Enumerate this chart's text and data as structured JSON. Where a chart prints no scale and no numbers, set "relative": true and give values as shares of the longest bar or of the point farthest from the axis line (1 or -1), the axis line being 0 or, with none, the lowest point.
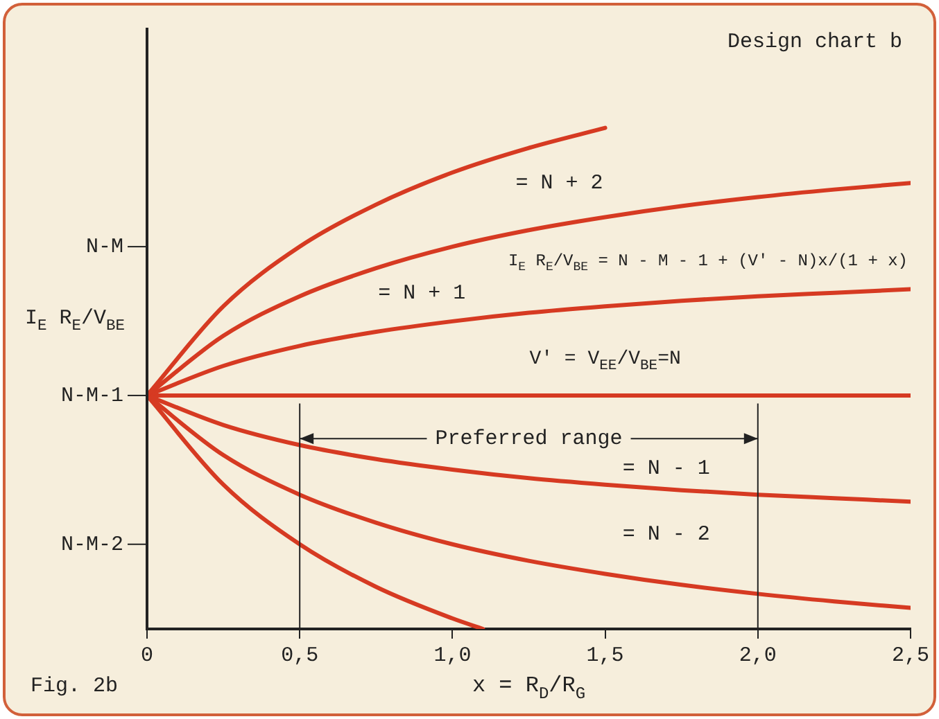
{
  "chart_data": {
    "type": "line",
    "relative": true,
    "xlabel": "x = R$_{D}$/R$_{G}$",
    "ylabel": "I$_{E}$ R$_{E}$/V$_{BE}$",
    "series": [
      {
        "color": "#d63a22",
        "x": [
          0,
          0.25,
          0.5,
          0.75,
          1,
          1.25,
          1.5
        ],
        "values": [
          0.466,
          0.644,
          0.763,
          0.847,
          0.911,
          0.96,
          1.0
        ]
      },
      {
        "color": "#d63a22",
        "x": [
          0,
          0.25,
          0.5,
          0.75,
          1,
          1.25,
          1.5,
          1.75,
          2,
          2.25,
          2.5
        ],
        "values": [
          0.466,
          0.585,
          0.664,
          0.72,
          0.763,
          0.796,
          0.822,
          0.844,
          0.862,
          0.877,
          0.89
        ]
      },
      {
        "color": "#d63a22",
        "x": [
          0,
          0.25,
          0.5,
          0.75,
          1,
          1.25,
          1.5,
          1.75,
          2,
          2.25,
          2.5
        ],
        "values": [
          0.466,
          0.525,
          0.565,
          0.593,
          0.614,
          0.631,
          0.644,
          0.655,
          0.664,
          0.671,
          0.678
        ]
      },
      {
        "color": "#d63a22",
        "x": [
          0,
          0.25,
          0.5,
          0.75,
          1,
          1.25,
          1.5,
          1.75,
          2,
          2.25,
          2.5
        ],
        "values": [
          0.466,
          0.466,
          0.466,
          0.466,
          0.466,
          0.466,
          0.466,
          0.466,
          0.466,
          0.466,
          0.466
        ]
      },
      {
        "color": "#d63a22",
        "x": [
          0,
          0.25,
          0.5,
          0.75,
          1,
          1.25,
          1.5,
          1.75,
          2,
          2.25,
          2.5
        ],
        "values": [
          0.466,
          0.407,
          0.367,
          0.339,
          0.318,
          0.301,
          0.288,
          0.277,
          0.268,
          0.261,
          0.254
        ]
      },
      {
        "color": "#d63a22",
        "x": [
          0,
          0.25,
          0.5,
          0.75,
          1,
          1.25,
          1.5,
          1.75,
          2,
          2.25,
          2.5
        ],
        "values": [
          0.466,
          0.347,
          0.268,
          0.212,
          0.169,
          0.136,
          0.11,
          0.088,
          0.07,
          0.055,
          0.042
        ]
      },
      {
        "color": "#d63a22",
        "x": [
          0,
          0.25,
          0.5,
          0.75,
          1,
          1.1
        ],
        "values": [
          0.466,
          0.288,
          0.169,
          0.084,
          0.021,
          0
        ]
      }
    ],
    "xlim": [
      0,
      2.5
    ],
    "xticks": [
      0,
      {
        "value": 0.5,
        "label": "0,5"
      },
      {
        "value": 1,
        "label": "1,0"
      },
      {
        "value": 1.5,
        "label": "1,5"
      },
      {
        "value": 2,
        "label": "2,0"
      },
      {
        "value": 2.5,
        "label": "2,5"
      }
    ],
    "ref_lines": [
      {
        "axis": "x",
        "value": 0.5
      },
      {
        "axis": "x",
        "value": 2.0
      }
    ],
    "annotations": [
      "Design chart b",
      "= N + 2",
      "= N + 1",
      "I$_{E}$ R$_{E}$/V$_{BE}$ = N - M - 1 + (V′ - N)x/(1 + x)",
      "V′ = V$_{EE}$/V$_{BE}$=N",
      "Preferred range",
      "= N - 1",
      "= N - 2",
      "Fig. 2b",
      "N-M",
      "N-M-1",
      "N-M-2"
    ],
    "grid": false,
    "legend": false,
    "marker": "none",
    "line_style": "solid"
  }
}
